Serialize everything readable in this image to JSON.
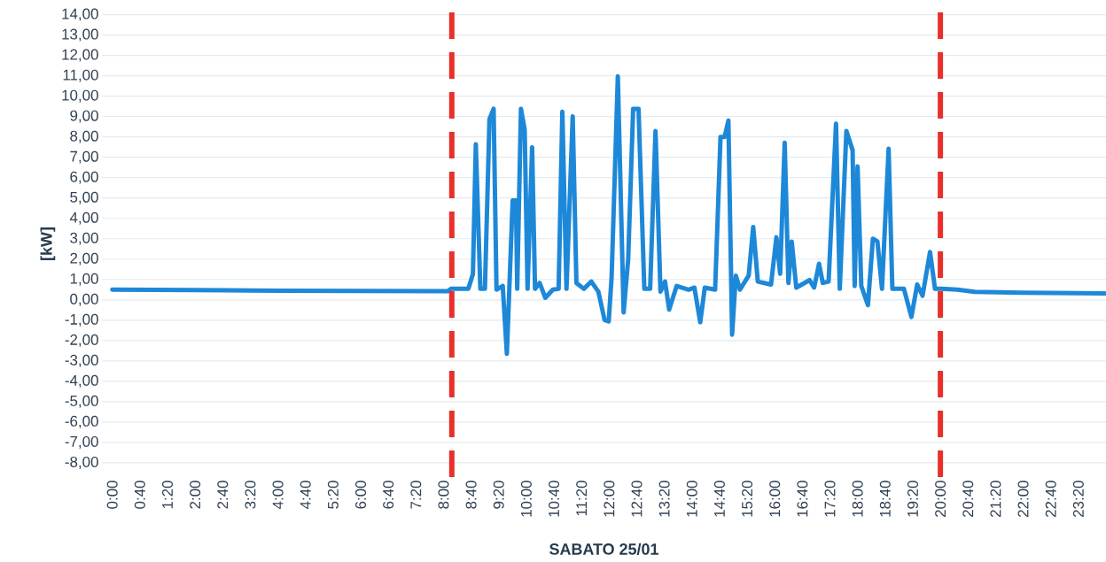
{
  "chart_data": {
    "type": "line",
    "xlabel": "SABATO 25/01",
    "ylabel": "[kW]",
    "color": "#1e88d8",
    "grid": "y",
    "x": [
      0,
      2,
      4,
      6,
      8.1,
      8.19,
      8.6,
      8.71,
      8.78,
      8.89,
      9.0,
      9.11,
      9.21,
      9.28,
      9.43,
      9.53,
      9.67,
      9.75,
      9.78,
      9.87,
      9.96,
      10.03,
      10.14,
      10.21,
      10.32,
      10.46,
      10.64,
      10.78,
      10.87,
      10.97,
      11.12,
      11.21,
      11.39,
      11.57,
      11.74,
      11.89,
      11.99,
      12.06,
      12.21,
      12.35,
      12.46,
      12.58,
      12.71,
      12.85,
      12.99,
      13.12,
      13.24,
      13.35,
      13.45,
      13.63,
      13.92,
      14.06,
      14.2,
      14.31,
      14.56,
      14.69,
      14.79,
      14.88,
      14.97,
      15.06,
      15.16,
      15.37,
      15.48,
      15.59,
      15.91,
      16.04,
      16.13,
      16.24,
      16.33,
      16.41,
      16.52,
      16.84,
      16.95,
      17.07,
      17.16,
      17.3,
      17.48,
      17.57,
      17.73,
      17.88,
      17.93,
      18.0,
      18.09,
      18.25,
      18.37,
      18.48,
      18.59,
      18.75,
      18.84,
      19.12,
      19.3,
      19.44,
      19.57,
      19.75,
      19.87,
      20.02,
      20.41,
      20.83,
      22,
      23.97
    ],
    "values": [
      0.5,
      0.48,
      0.45,
      0.44,
      0.42,
      0.55,
      0.55,
      1.26,
      7.64,
      0.54,
      0.54,
      8.87,
      9.38,
      0.5,
      0.68,
      -2.65,
      4.88,
      4.88,
      0.54,
      9.38,
      8.36,
      0.54,
      7.49,
      0.54,
      0.83,
      0.1,
      0.5,
      0.54,
      9.23,
      0.54,
      9.01,
      0.83,
      0.54,
      0.9,
      0.4,
      -0.99,
      -1.06,
      1.12,
      10.97,
      -0.62,
      1.99,
      9.38,
      9.38,
      0.54,
      0.54,
      8.29,
      0.4,
      0.9,
      -0.48,
      0.68,
      0.5,
      0.6,
      -1.1,
      0.6,
      0.5,
      8.0,
      8.0,
      8.8,
      -1.71,
      1.19,
      0.5,
      1.19,
      3.58,
      0.9,
      0.75,
      3.07,
      1.28,
      7.71,
      0.83,
      2.86,
      0.6,
      0.97,
      0.6,
      1.77,
      0.83,
      0.9,
      8.65,
      0.54,
      8.29,
      7.35,
      0.68,
      6.55,
      0.68,
      -0.26,
      3.0,
      2.86,
      0.54,
      7.42,
      0.54,
      0.54,
      -0.84,
      0.75,
      0.2,
      2.35,
      0.54,
      0.54,
      0.5,
      0.39,
      0.35,
      0.32
    ],
    "xlim": [
      -0.25,
      24
    ],
    "ylim": [
      -8.7,
      14.2
    ],
    "xticks": [
      {
        "value": 0,
        "label": "0:00"
      },
      {
        "value": 0.6667,
        "label": "0:40"
      },
      {
        "value": 1.3333,
        "label": "1:20"
      },
      {
        "value": 2,
        "label": "2:00"
      },
      {
        "value": 2.6667,
        "label": "2:40"
      },
      {
        "value": 3.3333,
        "label": "3:20"
      },
      {
        "value": 4,
        "label": "4:00"
      },
      {
        "value": 4.6667,
        "label": "4:40"
      },
      {
        "value": 5.3333,
        "label": "5:20"
      },
      {
        "value": 6,
        "label": "6:00"
      },
      {
        "value": 6.6667,
        "label": "6:40"
      },
      {
        "value": 7.3333,
        "label": "7:20"
      },
      {
        "value": 8,
        "label": "8:00"
      },
      {
        "value": 8.6667,
        "label": "8:40"
      },
      {
        "value": 9.3333,
        "label": "9:20"
      },
      {
        "value": 10,
        "label": "10:00"
      },
      {
        "value": 10.6667,
        "label": "10:40"
      },
      {
        "value": 11.3333,
        "label": "11:20"
      },
      {
        "value": 12,
        "label": "12:00"
      },
      {
        "value": 12.6667,
        "label": "12:40"
      },
      {
        "value": 13.3333,
        "label": "13:20"
      },
      {
        "value": 14,
        "label": "14:00"
      },
      {
        "value": 14.6667,
        "label": "14:40"
      },
      {
        "value": 15.3333,
        "label": "15:20"
      },
      {
        "value": 16,
        "label": "16:00"
      },
      {
        "value": 16.6667,
        "label": "16:40"
      },
      {
        "value": 17.3333,
        "label": "17:20"
      },
      {
        "value": 18,
        "label": "18:00"
      },
      {
        "value": 18.6667,
        "label": "18:40"
      },
      {
        "value": 19.3333,
        "label": "19:20"
      },
      {
        "value": 20,
        "label": "20:00"
      },
      {
        "value": 20.6667,
        "label": "20:40"
      },
      {
        "value": 21.3333,
        "label": "21:20"
      },
      {
        "value": 22,
        "label": "22:00"
      },
      {
        "value": 22.6667,
        "label": "22:40"
      },
      {
        "value": 23.3333,
        "label": "23:20"
      }
    ],
    "yticks": [
      {
        "value": 14,
        "label": "14,00"
      },
      {
        "value": 13,
        "label": "13,00"
      },
      {
        "value": 12,
        "label": "12,00"
      },
      {
        "value": 11,
        "label": "11,00"
      },
      {
        "value": 10,
        "label": "10,00"
      },
      {
        "value": 9,
        "label": "9,00"
      },
      {
        "value": 8,
        "label": "8,00"
      },
      {
        "value": 7,
        "label": "7,00"
      },
      {
        "value": 6,
        "label": "6,00"
      },
      {
        "value": 5,
        "label": "5,00"
      },
      {
        "value": 4,
        "label": "4,00"
      },
      {
        "value": 3,
        "label": "3,00"
      },
      {
        "value": 2,
        "label": "2,00"
      },
      {
        "value": 1,
        "label": "1,00"
      },
      {
        "value": 0,
        "label": "0,00"
      },
      {
        "value": -1,
        "label": "-1,00"
      },
      {
        "value": -2,
        "label": "-2,00"
      },
      {
        "value": -3,
        "label": "-3,00"
      },
      {
        "value": -4,
        "label": "-4,00"
      },
      {
        "value": -5,
        "label": "-5,00"
      },
      {
        "value": -6,
        "label": "-6,00"
      },
      {
        "value": -7,
        "label": "-7,00"
      },
      {
        "value": -8,
        "label": "-8,00"
      }
    ],
    "ref_lines": [
      {
        "axis": "x",
        "value": 8.2,
        "color": "#e8302a",
        "line_style": "dashed"
      },
      {
        "axis": "x",
        "value": 20,
        "color": "#e8302a",
        "line_style": "dashed"
      }
    ]
  }
}
